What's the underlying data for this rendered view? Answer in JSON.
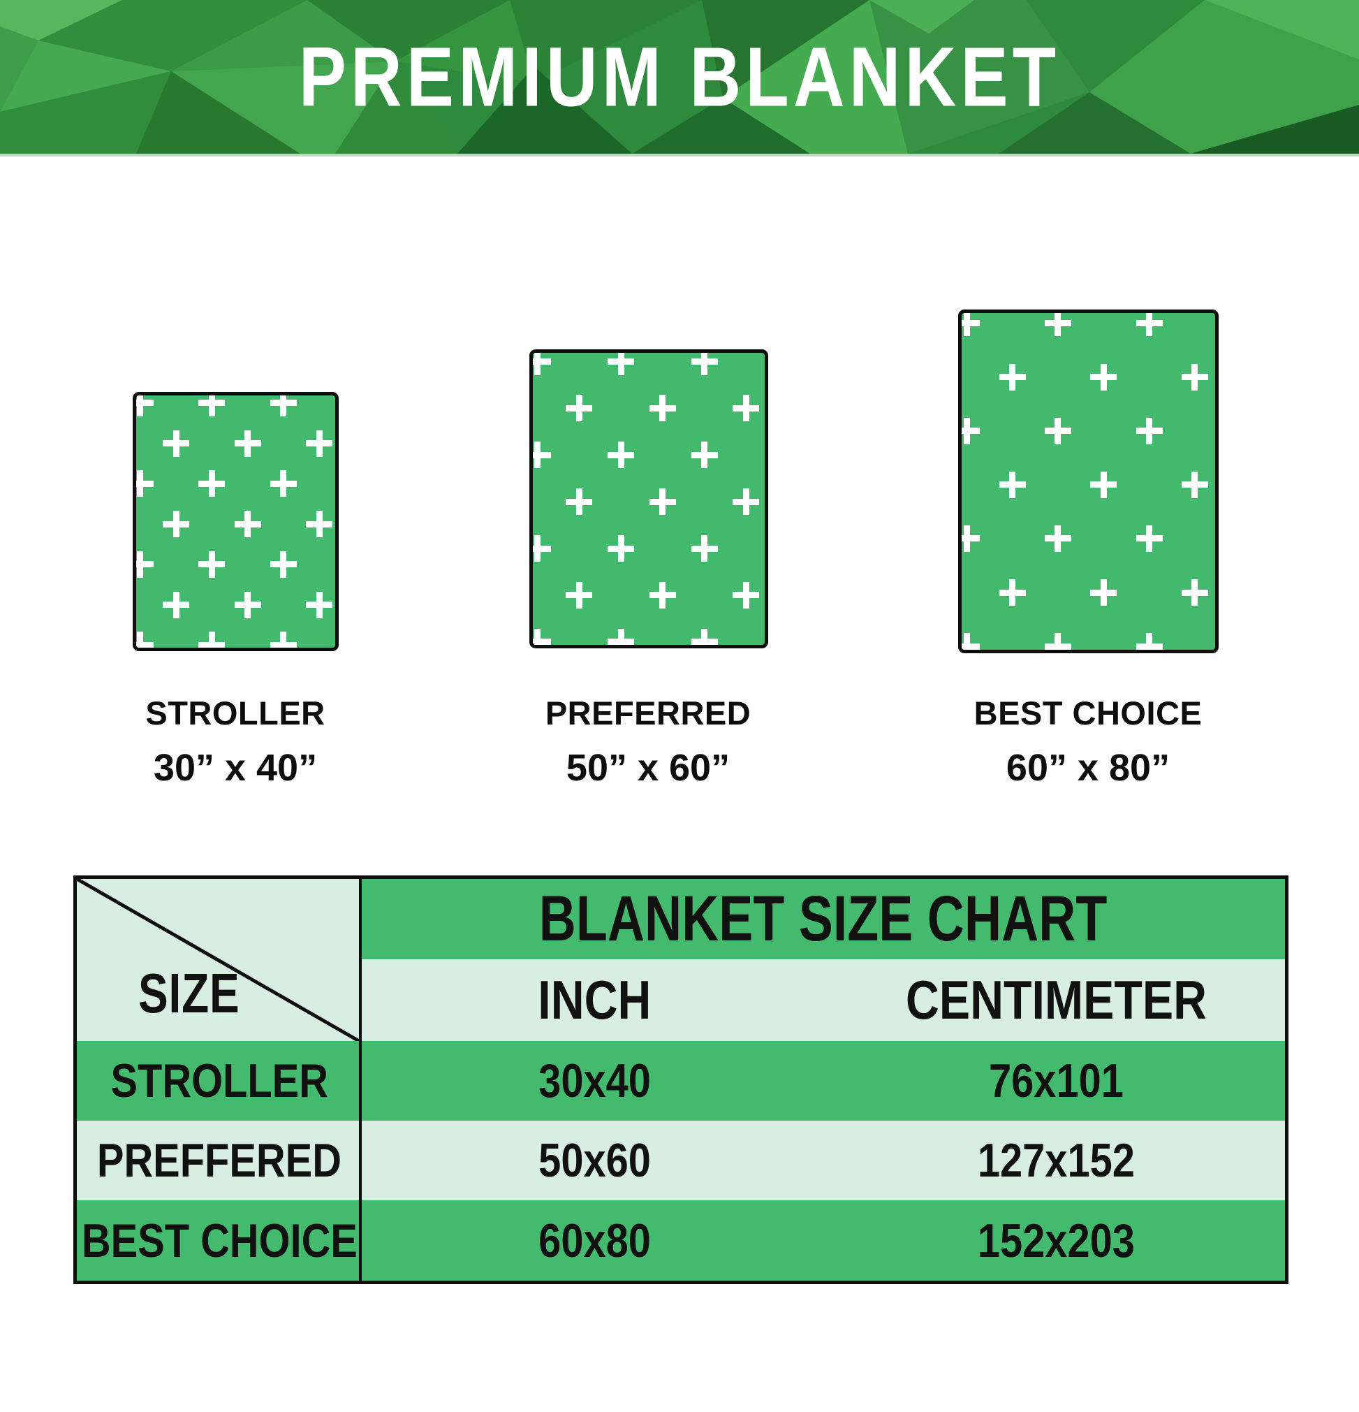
{
  "header": {
    "title": "PREMIUM BLANKET"
  },
  "swatches": [
    {
      "name": "STROLLER",
      "dimensions": "30” x 40”"
    },
    {
      "name": "PREFERRED",
      "dimensions": "50” x 60”"
    },
    {
      "name": "BEST CHOICE",
      "dimensions": "60” x 80”"
    }
  ],
  "chart_data": {
    "type": "table",
    "title": "BLANKET SIZE CHART",
    "corner_label": "SIZE",
    "columns": [
      "INCH",
      "CENTIMETER"
    ],
    "rows": [
      [
        "STROLLER",
        "30x40",
        "76x101"
      ],
      [
        "PREFFERED",
        "50x60",
        "127x152"
      ],
      [
        "BEST CHOICE",
        "60x80",
        "152x203"
      ]
    ]
  },
  "colors": {
    "blanket_green": "#42b96d",
    "table_green": "#44ba6f",
    "table_light_green": "#d8eee0",
    "banner_base_green": "#2e8a3c",
    "border_black": "#0e0e0e",
    "pattern_white": "#fdfefd"
  }
}
